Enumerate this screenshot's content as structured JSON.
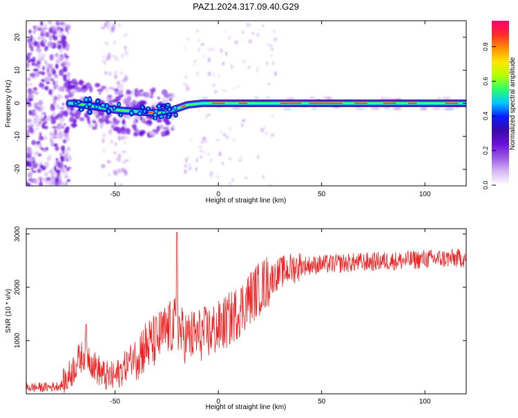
{
  "figure_title": "PAZ1.2024.317.09.40.G29",
  "chart_data": [
    {
      "type": "heatmap",
      "title": "PAZ1.2024.317.09.40.G29",
      "xlabel": "Height of straight line (km)",
      "ylabel": "Frequency (Hz)",
      "xlim": [
        -93,
        120
      ],
      "ylim": [
        -25,
        25
      ],
      "xticks": [
        -50,
        0,
        50,
        100
      ],
      "yticks": [
        -20,
        -10,
        0,
        10,
        20
      ],
      "colorbar": {
        "label": "Normalized spectral amplitude",
        "range": [
          0,
          0.95
        ],
        "ticks": [
          0.0,
          0.2,
          0.4,
          0.6,
          0.8
        ]
      },
      "ridge_frequency_hz": [
        {
          "x": -70,
          "y": 0.0
        },
        {
          "x": -60,
          "y": -1.0
        },
        {
          "x": -50,
          "y": -2.0
        },
        {
          "x": -40,
          "y": -2.5
        },
        {
          "x": -30,
          "y": -3.0
        },
        {
          "x": -22,
          "y": -2.0
        },
        {
          "x": -15,
          "y": -0.5
        },
        {
          "x": -8,
          "y": 0.0
        },
        {
          "x": 0,
          "y": 0.0
        },
        {
          "x": 50,
          "y": 0.0
        },
        {
          "x": 120,
          "y": 0.0
        }
      ],
      "grid": false,
      "colormap": [
        "#ffffff",
        "#d6b8f4",
        "#9c5ae6",
        "#6a10d8",
        "#3a0aa8",
        "#0a1aff",
        "#00c8ff",
        "#2cff6a",
        "#b4ff00",
        "#ffe600",
        "#ff9000",
        "#ff2a2a",
        "#ff0070"
      ]
    },
    {
      "type": "line",
      "xlabel": "Height of straight line (km)",
      "ylabel": "SNR (10 * v/v)",
      "xlim": [
        -93,
        120
      ],
      "ylim": [
        0,
        3100
      ],
      "xticks": [
        -50,
        0,
        50,
        100
      ],
      "yticks": [
        1000,
        2000,
        3000
      ],
      "grid": false,
      "series": [
        {
          "color": "#ee2020",
          "x": [
            -93,
            -85,
            -80,
            -75,
            -72,
            -70,
            -68,
            -66,
            -64,
            -62,
            -60,
            -55,
            -50,
            -45,
            -40,
            -35,
            -30,
            -25,
            -22,
            -20,
            -18,
            -15,
            -10,
            -5,
            0,
            5,
            10,
            15,
            20,
            25,
            30,
            35,
            40,
            50,
            60,
            70,
            80,
            90,
            100,
            110,
            120
          ],
          "y": [
            120,
            120,
            130,
            170,
            350,
            480,
            620,
            700,
            780,
            650,
            520,
            330,
            310,
            520,
            760,
            890,
            1000,
            1200,
            1260,
            1350,
            1130,
            1060,
            1100,
            1150,
            1230,
            1380,
            1560,
            1800,
            1980,
            2150,
            2280,
            2350,
            2400,
            2430,
            2450,
            2470,
            2490,
            2500,
            2530,
            2540,
            2550
          ],
          "spikes": [
            {
              "x": -64,
              "y": 1300
            },
            {
              "x": -20,
              "y": 3030
            }
          ]
        }
      ]
    }
  ]
}
